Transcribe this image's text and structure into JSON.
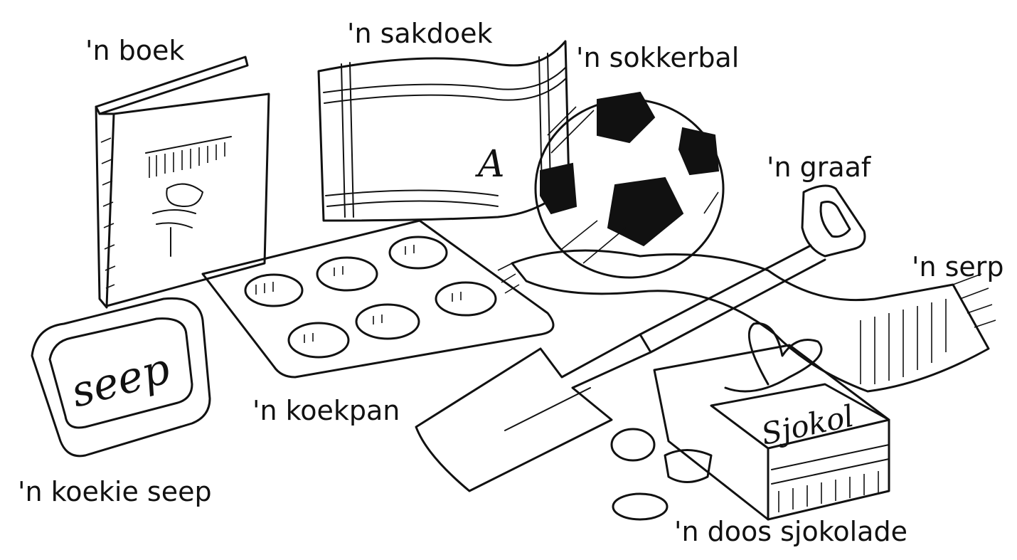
{
  "labels": {
    "boek": "'n boek",
    "sakdoek": "'n sakdoek",
    "sokkerbal": "'n sokkerbal",
    "graaf": "'n graaf",
    "serp": "'n serp",
    "koekpan": "'n koekpan",
    "koekie_seep": "'n koekie seep",
    "doos_sjokolade": "'n doos sjokolade"
  },
  "item_text": {
    "soap_word": "seep",
    "chocolate_box_word": "Sjokol",
    "handkerchief_monogram": "A"
  },
  "colors": {
    "ink": "#111111",
    "paper": "#ffffff"
  }
}
